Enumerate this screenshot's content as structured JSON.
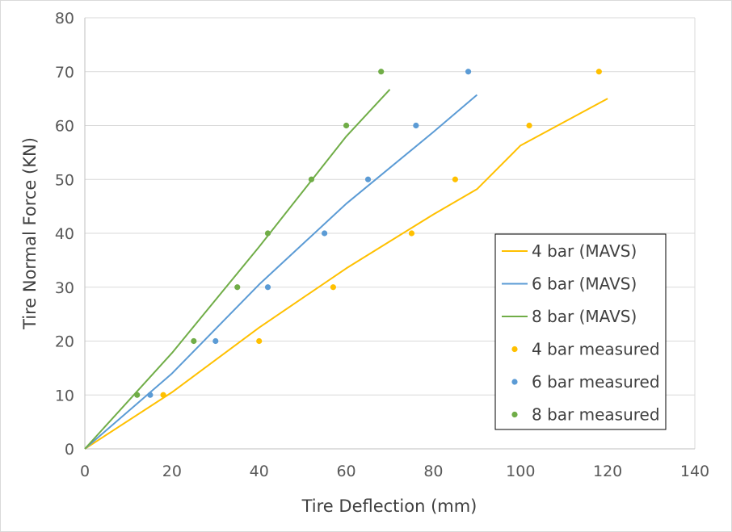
{
  "chart_data": {
    "type": "scatter",
    "title": "",
    "xlabel": "Tire Deflection (mm)",
    "ylabel": "Tire Normal Force (KN)",
    "xlim": [
      0,
      140
    ],
    "ylim": [
      0,
      80
    ],
    "xticks": [
      0,
      20,
      40,
      60,
      80,
      100,
      120,
      140
    ],
    "yticks": [
      0,
      10,
      20,
      30,
      40,
      50,
      60,
      70,
      80
    ],
    "grid": "horizontal",
    "legend_position": "right",
    "series": [
      {
        "name": "4 bar (MAVS)",
        "kind": "line",
        "color": "#FFC000",
        "x": [
          0,
          20,
          40,
          60,
          80,
          90,
          100,
          120
        ],
        "y": [
          0,
          10.5,
          22.5,
          33.5,
          43.5,
          48.2,
          56.3,
          65
        ]
      },
      {
        "name": "6 bar (MAVS)",
        "kind": "line",
        "color": "#5B9BD5",
        "x": [
          0,
          20,
          40,
          60,
          80,
          90
        ],
        "y": [
          0,
          14,
          30.5,
          45.5,
          58.8,
          65.7
        ]
      },
      {
        "name": "8 bar (MAVS)",
        "kind": "line",
        "color": "#70AD47",
        "x": [
          0,
          20,
          40,
          60,
          70
        ],
        "y": [
          0,
          17.8,
          37.5,
          58,
          66.7
        ]
      },
      {
        "name": "4 bar measured",
        "kind": "points",
        "color": "#FFC000",
        "x": [
          18,
          40,
          57,
          75,
          85,
          102,
          118
        ],
        "y": [
          10,
          20,
          30,
          40,
          50,
          60,
          70
        ]
      },
      {
        "name": "6 bar measured",
        "kind": "points",
        "color": "#5B9BD5",
        "x": [
          15,
          30,
          42,
          55,
          65,
          76,
          88
        ],
        "y": [
          10,
          20,
          30,
          40,
          50,
          60,
          70
        ]
      },
      {
        "name": "8 bar measured",
        "kind": "points",
        "color": "#70AD47",
        "x": [
          12,
          25,
          35,
          42,
          52,
          60,
          68
        ],
        "y": [
          10,
          20,
          30,
          40,
          50,
          60,
          70
        ]
      }
    ]
  }
}
